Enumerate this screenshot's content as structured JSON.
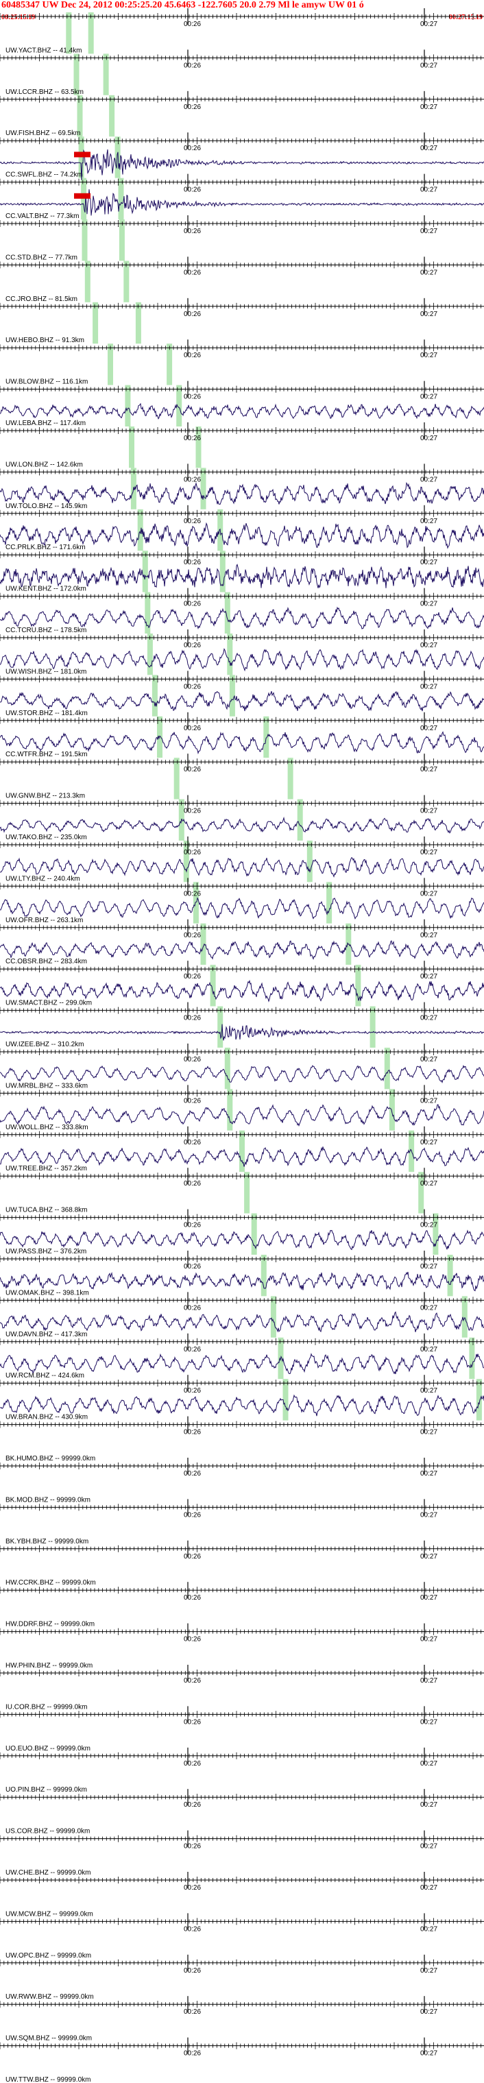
{
  "header": {
    "title": "60485347 UW Dec 24, 2012 00:25:25.20    45.6463 -122.7605 20.0 2.79 Ml le amyw UW 01  ó",
    "start_time": "00:25:15.19",
    "end_time": "00:27:15.19"
  },
  "colors": {
    "header_text": "#ff0000",
    "trace": "#1a0a5e",
    "pick": "#a8e2a8",
    "pick_red": "#dd0000",
    "axis": "#000000"
  },
  "chart_data": {
    "type": "line",
    "title": "60485347 UW Dec 24, 2012 00:25:25.20    45.6463 -122.7605 20.0 2.79 Ml le amyw UW 01  ó",
    "xlabel": "",
    "ylabel": "",
    "xlim": [
      "00:25:15.19",
      "00:27:15.19"
    ],
    "minute_marks": [
      "00:26",
      "00:27"
    ],
    "channels": [
      {
        "label": "UW.YACT.BHZ -- 41.4km",
        "active": false,
        "p_pick": 0.142,
        "s_pick": 0.188,
        "amp": 0,
        "period": 30,
        "noise": 0
      },
      {
        "label": "UW.LCCR.BHZ -- 63.5km",
        "active": false,
        "p_pick": 0.158,
        "s_pick": 0.219,
        "amp": 0,
        "period": 30,
        "noise": 0
      },
      {
        "label": "UW.FISH.BHZ -- 69.5km",
        "active": false,
        "p_pick": 0.165,
        "s_pick": 0.231,
        "amp": 0,
        "period": 30,
        "noise": 0
      },
      {
        "label": "CC.SWFL.BHZ -- 74.2km",
        "active": true,
        "p_pick": 0.168,
        "s_pick": 0.243,
        "amp": 22,
        "period": 5,
        "noise": 0.9,
        "red_marker": true
      },
      {
        "label": "CC.VALT.BHZ -- 77.3km",
        "active": true,
        "p_pick": 0.173,
        "s_pick": 0.25,
        "amp": 18,
        "period": 5,
        "noise": 0.9,
        "red_marker": true
      },
      {
        "label": "CC.STD.BHZ -- 77.7km",
        "active": false,
        "p_pick": 0.175,
        "s_pick": 0.252,
        "amp": 0,
        "period": 30,
        "noise": 0
      },
      {
        "label": "CC.JRO.BHZ -- 81.5km",
        "active": false,
        "p_pick": 0.181,
        "s_pick": 0.261,
        "amp": 0,
        "period": 30,
        "noise": 0
      },
      {
        "label": "UW.HEBO.BHZ -- 91.3km",
        "active": false,
        "p_pick": 0.197,
        "s_pick": 0.286,
        "amp": 0,
        "period": 30,
        "noise": 0
      },
      {
        "label": "UW.BLOW.BHZ -- 116.1km",
        "active": false,
        "p_pick": 0.228,
        "s_pick": 0.35,
        "amp": 0,
        "period": 30,
        "noise": 0
      },
      {
        "label": "UW.LEBA.BHZ -- 117.4km",
        "active": true,
        "p_pick": 0.264,
        "s_pick": 0.37,
        "amp": 9,
        "period": 18,
        "noise": 0.35
      },
      {
        "label": "UW.LON.BHZ -- 142.6km",
        "active": false,
        "p_pick": 0.272,
        "s_pick": 0.41,
        "amp": 0,
        "period": 30,
        "noise": 0
      },
      {
        "label": "UW.TOLO.BHZ -- 145.9km",
        "active": true,
        "p_pick": 0.276,
        "s_pick": 0.42,
        "amp": 13,
        "period": 22,
        "noise": 0.35
      },
      {
        "label": "CC.PRLK.BHZ -- 171.6km",
        "active": true,
        "p_pick": 0.29,
        "s_pick": 0.455,
        "amp": 14,
        "period": 19,
        "noise": 0.4
      },
      {
        "label": "UW.KENT.BHZ -- 172.0km",
        "active": true,
        "p_pick": 0.3,
        "s_pick": 0.46,
        "amp": 13,
        "period": 14,
        "noise": 0.6
      },
      {
        "label": "CC.TCRU.BHZ -- 178.5km",
        "active": true,
        "p_pick": 0.305,
        "s_pick": 0.47,
        "amp": 13,
        "period": 24,
        "noise": 0.25
      },
      {
        "label": "UW.WISH.BHZ -- 181.0km",
        "active": true,
        "p_pick": 0.31,
        "s_pick": 0.475,
        "amp": 13,
        "period": 20,
        "noise": 0.25
      },
      {
        "label": "UW.STOR.BHZ -- 181.4km",
        "active": true,
        "p_pick": 0.32,
        "s_pick": 0.48,
        "amp": 12,
        "period": 26,
        "noise": 0.3
      },
      {
        "label": "CC.WTFR.BHZ -- 191.5km",
        "active": true,
        "p_pick": 0.33,
        "s_pick": 0.55,
        "amp": 13,
        "period": 23,
        "noise": 0.25
      },
      {
        "label": "UW.GNW.BHZ -- 213.3km",
        "active": false,
        "p_pick": 0.365,
        "s_pick": 0.6,
        "amp": 0,
        "period": 30,
        "noise": 0
      },
      {
        "label": "UW.TAKO.BHZ -- 235.0km",
        "active": true,
        "p_pick": 0.375,
        "s_pick": 0.62,
        "amp": 9,
        "period": 21,
        "noise": 0.3
      },
      {
        "label": "UW.LTY.BHZ -- 240.4km",
        "active": true,
        "p_pick": 0.385,
        "s_pick": 0.64,
        "amp": 12,
        "period": 18,
        "noise": 0.25
      },
      {
        "label": "UW.OFR.BHZ -- 263.1km",
        "active": true,
        "p_pick": 0.405,
        "s_pick": 0.68,
        "amp": 13,
        "period": 20,
        "noise": 0.2
      },
      {
        "label": "CC.OBSR.BHZ -- 283.4km",
        "active": true,
        "p_pick": 0.42,
        "s_pick": 0.72,
        "amp": 11,
        "period": 21,
        "noise": 0.3
      },
      {
        "label": "UW.SMACT.BHZ -- 299.0km",
        "active": true,
        "p_pick": 0.44,
        "s_pick": 0.74,
        "amp": 12,
        "period": 19,
        "noise": 0.35
      },
      {
        "label": "UW.IZEE.BHZ -- 310.2km",
        "active": true,
        "p_pick": 0.455,
        "s_pick": 0.77,
        "amp": 10,
        "period": 6,
        "noise": 1.0
      },
      {
        "label": "UW.MRBL.BHZ -- 333.6km",
        "active": true,
        "p_pick": 0.47,
        "s_pick": 0.8,
        "amp": 11,
        "period": 22,
        "noise": 0.2
      },
      {
        "label": "UW.WOLL.BHZ -- 333.8km",
        "active": true,
        "p_pick": 0.475,
        "s_pick": 0.81,
        "amp": 13,
        "period": 24,
        "noise": 0.2
      },
      {
        "label": "UW.TREE.BHZ -- 357.2km",
        "active": true,
        "p_pick": 0.5,
        "s_pick": 0.85,
        "amp": 12,
        "period": 21,
        "noise": 0.25
      },
      {
        "label": "UW.TUCA.BHZ -- 368.8km",
        "active": false,
        "p_pick": 0.51,
        "s_pick": 0.87,
        "amp": 0,
        "period": 30,
        "noise": 0
      },
      {
        "label": "UW.PASS.BHZ -- 376.2km",
        "active": true,
        "p_pick": 0.525,
        "s_pick": 0.9,
        "amp": 12,
        "period": 20,
        "noise": 0.25
      },
      {
        "label": "UW.OMAK.BHZ -- 398.1km",
        "active": true,
        "p_pick": 0.545,
        "s_pick": 0.93,
        "amp": 11,
        "period": 18,
        "noise": 0.4
      },
      {
        "label": "UW.DAVN.BHZ -- 417.3km",
        "active": true,
        "p_pick": 0.565,
        "s_pick": 0.96,
        "amp": 12,
        "period": 20,
        "noise": 0.3
      },
      {
        "label": "UW.RCM.BHZ -- 424.6km",
        "active": true,
        "p_pick": 0.58,
        "s_pick": 0.975,
        "amp": 13,
        "period": 22,
        "noise": 0.25
      },
      {
        "label": "UW.BRAN.BHZ -- 430.9km",
        "active": true,
        "p_pick": 0.59,
        "s_pick": 0.99,
        "amp": 13,
        "period": 21,
        "noise": 0.25
      },
      {
        "label": "BK.HUMO.BHZ -- 99999.0km",
        "active": false
      },
      {
        "label": "BK.MOD.BHZ -- 99999.0km",
        "active": false
      },
      {
        "label": "BK.YBH.BHZ -- 99999.0km",
        "active": false
      },
      {
        "label": "HW.CCRK.BHZ -- 99999.0km",
        "active": false
      },
      {
        "label": "HW.DDRF.BHZ -- 99999.0km",
        "active": false
      },
      {
        "label": "HW.PHIN.BHZ -- 99999.0km",
        "active": false
      },
      {
        "label": "IU.COR.BHZ -- 99999.0km",
        "active": false
      },
      {
        "label": "UO.EUO.BHZ -- 99999.0km",
        "active": false
      },
      {
        "label": "UO.PIN.BHZ -- 99999.0km",
        "active": false
      },
      {
        "label": "US.COR.BHZ -- 99999.0km",
        "active": false
      },
      {
        "label": "UW.CHE.BHZ -- 99999.0km",
        "active": false
      },
      {
        "label": "UW.MCW.BHZ -- 99999.0km",
        "active": false
      },
      {
        "label": "UW.OPC.BHZ -- 99999.0km",
        "active": false
      },
      {
        "label": "UW.RWW.BHZ -- 99999.0km",
        "active": false
      },
      {
        "label": "UW.SQM.BHZ -- 99999.0km",
        "active": false
      },
      {
        "label": "UW.TTW.BHZ -- 99999.0km",
        "active": false
      }
    ]
  }
}
